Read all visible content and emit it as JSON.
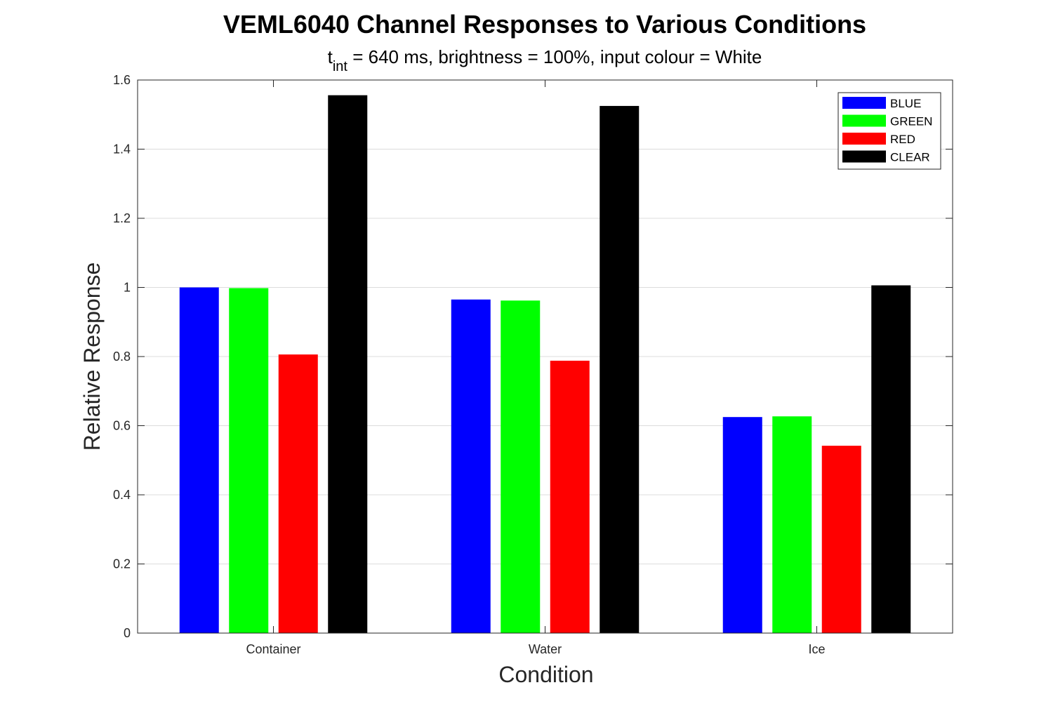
{
  "chart_data": {
    "type": "bar",
    "title": "VEML6040 Channel Responses to Various Conditions",
    "subtitle": {
      "t_symbol": "t",
      "t_subscript": "int",
      "rest": " = 640 ms, brightness = 100%, input colour = White"
    },
    "xlabel": "Condition",
    "ylabel": "Relative Response",
    "categories": [
      "Container",
      "Water",
      "Ice"
    ],
    "ylim": [
      0,
      1.6
    ],
    "yticks": [
      "0",
      "0.2",
      "0.4",
      "0.6",
      "0.8",
      "1",
      "1.2",
      "1.4",
      "1.6"
    ],
    "grid": true,
    "legend_position": "top-right",
    "series": [
      {
        "name": "BLUE",
        "color": "#0000ff",
        "values": [
          1.0,
          0.965,
          0.625
        ]
      },
      {
        "name": "GREEN",
        "color": "#00ff00",
        "values": [
          0.998,
          0.962,
          0.627
        ]
      },
      {
        "name": "RED",
        "color": "#ff0000",
        "values": [
          0.806,
          0.788,
          0.542
        ]
      },
      {
        "name": "CLEAR",
        "color": "#000000",
        "values": [
          1.556,
          1.525,
          1.006
        ]
      }
    ]
  }
}
